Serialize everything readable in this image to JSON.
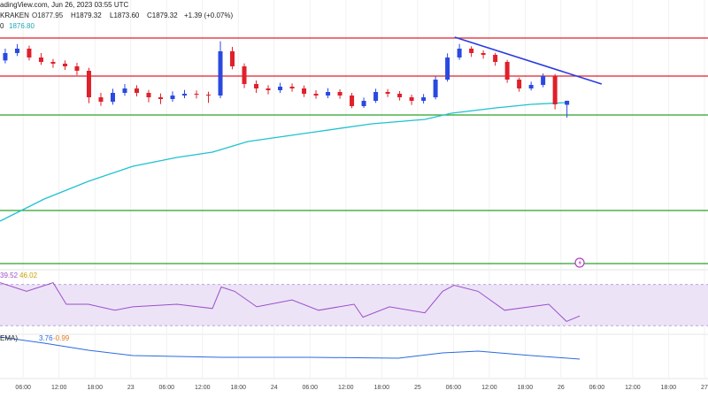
{
  "chart_data": {
    "type": "candlestick",
    "header": {
      "source": "adingView.com, Jun 26, 2023 03:55 UTC",
      "exchange": "KRAKEN",
      "open": "O1877.95",
      "high": "H1879.32",
      "low": "L1873.60",
      "close": "C1879.32",
      "change": "+1.39 (+0.07%)",
      "ma_prefix": "0",
      "ma_value": "1876.80"
    },
    "rsi_header": {
      "rsi": "39.52",
      "rsi_ma": "46.02"
    },
    "macd_header": {
      "name": "EMA)",
      "macd": "3.76",
      "signal": "-0.99"
    },
    "xlim": [
      -0.44,
      58.8
    ],
    "xticks": [
      {
        "value": 1.5,
        "label": "06:00"
      },
      {
        "value": 4.5,
        "label": "12:00"
      },
      {
        "value": 7.5,
        "label": "18:00"
      },
      {
        "value": 10.5,
        "label": "23"
      },
      {
        "value": 13.5,
        "label": "06:00"
      },
      {
        "value": 16.5,
        "label": "12:00"
      },
      {
        "value": 19.5,
        "label": "18:00"
      },
      {
        "value": 22.5,
        "label": "24"
      },
      {
        "value": 25.5,
        "label": "06:00"
      },
      {
        "value": 28.5,
        "label": "12:00"
      },
      {
        "value": 31.5,
        "label": "18:00"
      },
      {
        "value": 34.5,
        "label": "25"
      },
      {
        "value": 37.5,
        "label": "06:00"
      },
      {
        "value": 40.5,
        "label": "12:00"
      },
      {
        "value": 43.5,
        "label": "18:00"
      },
      {
        "value": 46.5,
        "label": "26"
      },
      {
        "value": 49.5,
        "label": "06:00"
      },
      {
        "value": 52.5,
        "label": "12:00"
      },
      {
        "value": 55.5,
        "label": "18:00"
      },
      {
        "value": 58.5,
        "label": "27"
      }
    ],
    "ylim": [
      1822,
      1913.5
    ],
    "up_color": "#2a49e0",
    "down_color": "#e0202a",
    "open": [
      1893,
      1895.5,
      1897,
      1894,
      1892.5,
      1891.9,
      1891,
      1889.5,
      1880.5,
      1879,
      1882,
      1883.5,
      1882,
      1880.5,
      1879.9,
      1881.1,
      1881.7,
      1881.4,
      1881.1,
      1896.1,
      1891,
      1885,
      1883.5,
      1882.9,
      1884.1,
      1883.5,
      1881.7,
      1881.1,
      1882.3,
      1881.1,
      1877.5,
      1879.3,
      1882.3,
      1881.7,
      1880.5,
      1879.3,
      1880.5,
      1886.5,
      1894,
      1897,
      1895.5,
      1894.9,
      1892.5,
      1886.5,
      1883.5,
      1884.7,
      1887.7,
      1877.95
    ],
    "high": [
      1897,
      1898.5,
      1898,
      1895.5,
      1893.5,
      1893,
      1892.2,
      1890.5,
      1882,
      1883.4,
      1885,
      1884.6,
      1883,
      1881.8,
      1882.5,
      1883,
      1882.8,
      1882.4,
      1899.5,
      1897.6,
      1892,
      1886.2,
      1884.6,
      1885.4,
      1885.2,
      1884.5,
      1882.9,
      1883.6,
      1883.2,
      1882,
      1880.4,
      1883.4,
      1883.3,
      1882.6,
      1881.4,
      1881.6,
      1887.6,
      1895.4,
      1898.6,
      1897.8,
      1896.4,
      1895.6,
      1893.2,
      1887.2,
      1885.8,
      1888.6,
      1888.4,
      1879.32
    ],
    "low": [
      1892,
      1894.5,
      1893,
      1891.5,
      1890.5,
      1889.8,
      1888,
      1878.5,
      1877.6,
      1878,
      1881,
      1880.8,
      1878.8,
      1878.2,
      1879,
      1880.2,
      1880.1,
      1878.6,
      1880.2,
      1890,
      1883.6,
      1882,
      1881.5,
      1882,
      1882.4,
      1880.6,
      1880,
      1880.2,
      1880,
      1876.8,
      1876.9,
      1878.6,
      1880.6,
      1879.4,
      1877.9,
      1878.4,
      1879.8,
      1885.8,
      1893.2,
      1894.2,
      1893.6,
      1891.2,
      1885.4,
      1882.4,
      1882.8,
      1883.9,
      1876.4,
      1873.6
    ],
    "close": [
      1895.5,
      1897,
      1894,
      1892.5,
      1891.9,
      1891,
      1889.5,
      1880.5,
      1879,
      1882,
      1883.5,
      1882,
      1880.5,
      1879.9,
      1881.1,
      1881.7,
      1881.4,
      1881.1,
      1896.1,
      1891,
      1885,
      1883.5,
      1882.9,
      1884.1,
      1883.5,
      1881.7,
      1881.1,
      1882.3,
      1881.1,
      1877.5,
      1879.3,
      1882.3,
      1881.7,
      1880.5,
      1879.3,
      1880.5,
      1886.5,
      1894,
      1897,
      1895.5,
      1894.9,
      1892.5,
      1886.5,
      1883.5,
      1884.7,
      1887.7,
      1878.1,
      1879.32
    ],
    "levels": [
      1900.6,
      1887.7,
      1874.5,
      1842.1,
      1824.1
    ],
    "level_colors": [
      "#e0202a",
      "#e0202a",
      "#2ca02c",
      "#2ca02c",
      "#2ca02c"
    ],
    "ma": {
      "color": "#1fc2cf",
      "x": [
        -0.44,
        3.26,
        6.96,
        10.67,
        14.37,
        17.33,
        20.3,
        25.48,
        30.67,
        35.11,
        37.33,
        41.04,
        44,
        46.96
      ],
      "values": [
        1838.5,
        1846,
        1852,
        1857.1,
        1860.1,
        1861.9,
        1865.5,
        1868.5,
        1871.5,
        1873,
        1875.1,
        1876.9,
        1878.1,
        1878.7
      ]
    },
    "trendline": {
      "color": "#2a3de0",
      "x": [
        37.6,
        49.9
      ],
      "values": [
        1900.9,
        1885
      ]
    },
    "rsi": {
      "color": "#9c4fc9",
      "band_color": "#ece3f7",
      "ylim": [
        21.7,
        84.2
      ],
      "band": [
        30,
        70
      ],
      "x": [
        -0.44,
        1.78,
        4,
        5.11,
        6.96,
        9.19,
        10.67,
        14.37,
        17.33,
        18.07,
        19.19,
        21.04,
        24,
        26.22,
        29.19,
        29.93,
        32.15,
        35.11,
        36.59,
        37.56,
        39.56,
        41.78,
        45.48,
        46.96,
        48.07
      ],
      "values": [
        71.7,
        63.3,
        71.7,
        50.8,
        50.8,
        45,
        48.3,
        50.8,
        46.7,
        67.5,
        63.3,
        48.3,
        55,
        45,
        50.8,
        38.3,
        48.3,
        42.5,
        63.3,
        69.2,
        63.3,
        45,
        50.8,
        34.2,
        39.52
      ]
    },
    "macd": {
      "color": "#2a6ae0",
      "ylim": [
        -12.5,
        12.5
      ],
      "x": [
        -0.44,
        3.26,
        6.96,
        10.67,
        18.07,
        25.48,
        32.89,
        36.59,
        39.56,
        44,
        48.07
      ],
      "values": [
        11,
        7.5,
        3.5,
        0.5,
        -0.5,
        -0.5,
        -1,
        2,
        3,
        0.5,
        -1.5
      ]
    }
  }
}
